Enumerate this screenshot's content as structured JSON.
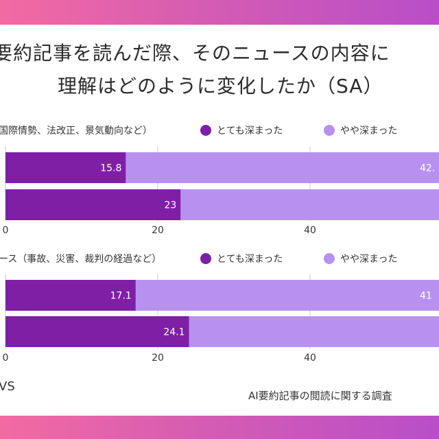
{
  "title": {
    "line1": "要約記事を読んだ際、そのニュースの内容に",
    "line2": "理解はどのように変化したか（SA）"
  },
  "colors": {
    "deep": "#7e1fa6",
    "somewhat": "#b891f0",
    "gradient_start": "#f36aa2",
    "gradient_end": "#b94ec8"
  },
  "legend": {
    "deep_label": "とても深まった",
    "somewhat_label": "やや深まった"
  },
  "chart_data": [
    {
      "type": "bar",
      "orientation": "horizontal",
      "stacked": true,
      "section_label": "国際情勢、法改正、景気動向など）",
      "series": [
        {
          "name": "とても深まった",
          "values": [
            15.8,
            23
          ]
        },
        {
          "name": "やや深まった",
          "values": [
            42,
            null
          ]
        }
      ],
      "data_labels": {
        "deep": [
          "15.8",
          "23"
        ],
        "somewhat": [
          "42.",
          ""
        ]
      },
      "xticks": [
        "0",
        "20",
        "40"
      ],
      "xlim": [
        0,
        60
      ]
    },
    {
      "type": "bar",
      "orientation": "horizontal",
      "stacked": true,
      "section_label": "ース（事故、災害、裁判の経過など）",
      "series": [
        {
          "name": "とても深まった",
          "values": [
            17.1,
            24.1
          ]
        },
        {
          "name": "やや深まった",
          "values": [
            41,
            null
          ]
        }
      ],
      "data_labels": {
        "deep": [
          "17.1",
          "24.1"
        ],
        "somewhat": [
          "41",
          ""
        ]
      },
      "xticks": [
        "0",
        "20",
        "40"
      ],
      "xlim": [
        0,
        60
      ]
    }
  ],
  "footer": {
    "left": "VS",
    "right": "AI要約記事の閲読に関する調査"
  }
}
